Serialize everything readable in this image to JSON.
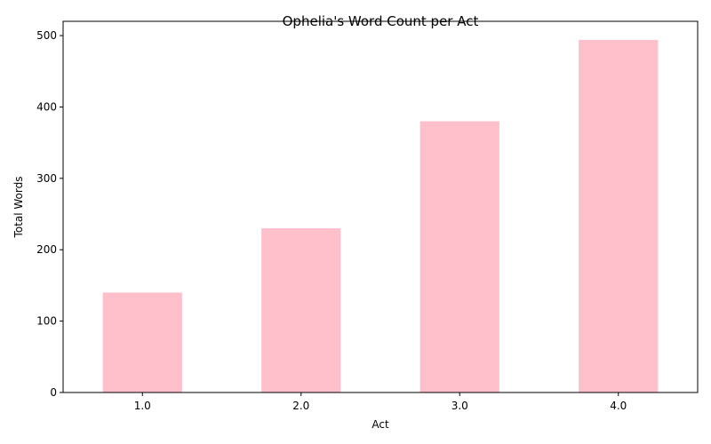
{
  "chart_data": {
    "type": "bar",
    "title": "Ophelia's Word Count per Act",
    "xlabel": "Act",
    "ylabel": "Total Words",
    "categories": [
      "1.0",
      "2.0",
      "3.0",
      "4.0"
    ],
    "values": [
      140,
      230,
      380,
      494
    ],
    "ylim": [
      0,
      520
    ],
    "yticks": [
      0,
      100,
      200,
      300,
      400,
      500
    ],
    "grid": false,
    "legend": "none",
    "bar_color": "#ffc0cb"
  }
}
